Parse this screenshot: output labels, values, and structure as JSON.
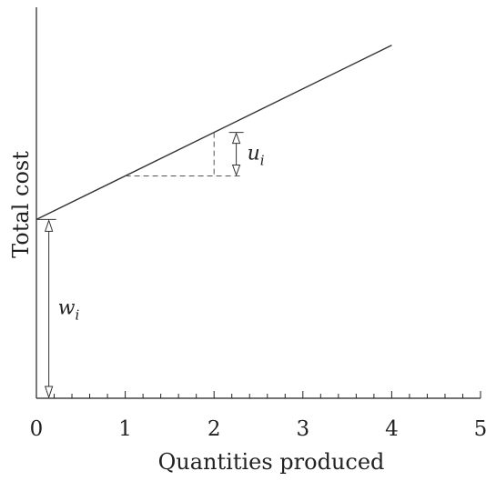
{
  "chart_data": {
    "type": "line",
    "xlabel": "Quantities produced",
    "ylabel": "Total cost",
    "xlim": [
      0,
      5
    ],
    "ylim": [
      0,
      8.8
    ],
    "x_ticks": [
      "0",
      "1",
      "2",
      "3",
      "4",
      "5"
    ],
    "minor_ticks_per_unit": 5,
    "y_ticks": [],
    "grid": false,
    "series": [
      {
        "x": [
          0,
          4
        ],
        "y": [
          3.95,
          7.8
        ]
      }
    ],
    "annotations": {
      "fixed_cost": {
        "label": "w",
        "subscript": "i",
        "from_y": 0,
        "to_y": 3.95,
        "x": 0.14
      },
      "unit_cost": {
        "label": "u",
        "subscript": "i",
        "from_x": 1,
        "to_x": 2,
        "x": 2.25
      }
    }
  }
}
